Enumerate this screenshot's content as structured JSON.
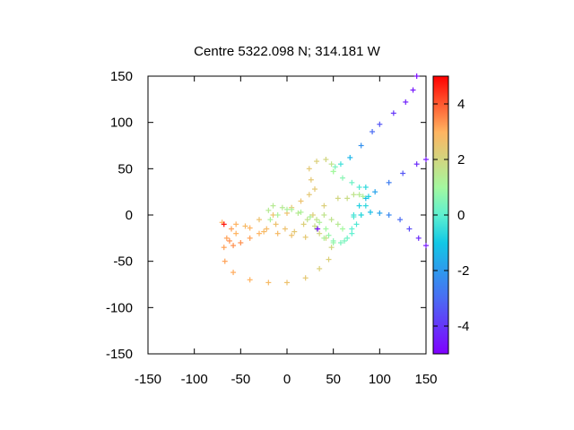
{
  "chart_data": {
    "type": "scatter",
    "title": "Centre 5322.098 N; 314.181  W",
    "xlabel": "",
    "ylabel": "",
    "xlim": [
      -150,
      150
    ],
    "ylim": [
      -150,
      150
    ],
    "x_ticks": [
      -150,
      -100,
      -50,
      0,
      50,
      100,
      150
    ],
    "x_tick_labels": [
      "-150",
      "-100",
      "-50",
      "0",
      "50",
      "100",
      "150"
    ],
    "y_ticks": [
      -150,
      -100,
      -50,
      0,
      50,
      100,
      150
    ],
    "y_tick_labels": [
      "-150",
      "-100",
      "-50",
      "0",
      "50",
      "100",
      "150"
    ],
    "grid": false,
    "colorbar": {
      "range": [
        -5,
        5
      ],
      "ticks": [
        -4,
        -2,
        0,
        2,
        4
      ],
      "tick_labels": [
        "-4",
        "-2",
        "0",
        "2",
        "4"
      ],
      "colormap": "rainbow"
    },
    "series": [
      {
        "points": [
          [
            140,
            150,
            -4.8
          ],
          [
            136,
            135,
            -4.6
          ],
          [
            128,
            122,
            -4.4
          ],
          [
            115,
            110,
            -4.0
          ],
          [
            100,
            98,
            -3.4
          ],
          [
            92,
            90,
            -3.0
          ],
          [
            80,
            75,
            -2.2
          ],
          [
            68,
            62,
            -1.4
          ],
          [
            58,
            55,
            -0.4
          ],
          [
            52,
            52,
            0.4
          ],
          [
            50,
            47,
            1.0
          ],
          [
            48,
            55,
            1.6
          ],
          [
            42,
            60,
            2.0
          ],
          [
            32,
            58,
            2.2
          ],
          [
            24,
            50,
            2.4
          ],
          [
            26,
            38,
            2.4
          ],
          [
            30,
            28,
            2.4
          ],
          [
            24,
            22,
            2.4
          ],
          [
            15,
            15,
            2.6
          ],
          [
            5,
            8,
            2.6
          ],
          [
            0,
            2,
            2.6
          ],
          [
            -15,
            0,
            2.6
          ],
          [
            -30,
            -5,
            2.6
          ],
          [
            -45,
            -12,
            2.8
          ],
          [
            -55,
            -20,
            3.0
          ],
          [
            -65,
            -25,
            3.2
          ],
          [
            -68,
            -35,
            3.2
          ],
          [
            -67,
            -50,
            3.2
          ],
          [
            -58,
            -62,
            3.1
          ],
          [
            -40,
            -70,
            3.0
          ],
          [
            -20,
            -73,
            2.8
          ],
          [
            0,
            -73,
            2.6
          ],
          [
            20,
            -68,
            2.4
          ],
          [
            35,
            -58,
            2.2
          ],
          [
            45,
            -48,
            2.2
          ],
          [
            48,
            -35,
            2.0
          ],
          [
            42,
            -25,
            2.0
          ],
          [
            35,
            -20,
            2.0
          ],
          [
            30,
            -12,
            1.8
          ],
          [
            22,
            -5,
            1.6
          ],
          [
            12,
            2,
            1.4
          ],
          [
            0,
            6,
            1.2
          ],
          [
            -10,
            0,
            1.2
          ],
          [
            -18,
            -5,
            1.2
          ],
          [
            -20,
            5,
            1.4
          ],
          [
            -15,
            10,
            1.4
          ],
          [
            -5,
            8,
            1.4
          ],
          [
            5,
            6,
            1.2
          ],
          [
            15,
            3,
            1.2
          ],
          [
            25,
            -2,
            1.2
          ],
          [
            35,
            -8,
            1.2
          ],
          [
            42,
            -15,
            1.0
          ],
          [
            45,
            -22,
            0.8
          ],
          [
            50,
            -28,
            0.6
          ],
          [
            58,
            -30,
            0.4
          ],
          [
            65,
            -25,
            0.2
          ],
          [
            70,
            -15,
            0.0
          ],
          [
            72,
            0,
            -0.4
          ],
          [
            78,
            10,
            -0.8
          ],
          [
            85,
            18,
            -1.2
          ],
          [
            95,
            25,
            -1.8
          ],
          [
            110,
            35,
            -2.6
          ],
          [
            125,
            45,
            -3.4
          ],
          [
            140,
            55,
            -4.2
          ],
          [
            150,
            60,
            -4.6
          ],
          [
            50,
            47,
            1.0
          ],
          [
            60,
            40,
            0.6
          ],
          [
            70,
            35,
            0.2
          ],
          [
            78,
            30,
            -0.2
          ],
          [
            85,
            30,
            -0.6
          ],
          [
            88,
            20,
            -0.8
          ],
          [
            85,
            10,
            -0.6
          ],
          [
            80,
            0,
            -0.4
          ],
          [
            75,
            -10,
            -0.2
          ],
          [
            70,
            -20,
            0.0
          ],
          [
            62,
            -28,
            0.4
          ],
          [
            50,
            -30,
            0.8
          ],
          [
            40,
            -25,
            1.2
          ],
          [
            32,
            -15,
            1.4
          ],
          [
            32,
            -5,
            1.6
          ],
          [
            40,
            0,
            1.6
          ],
          [
            48,
            -5,
            1.6
          ],
          [
            55,
            -10,
            1.4
          ],
          [
            60,
            -15,
            1.0
          ],
          [
            72,
            -2,
            -0.2
          ],
          [
            80,
            0,
            -0.6
          ],
          [
            90,
            3,
            -1.2
          ],
          [
            100,
            2,
            -1.8
          ],
          [
            110,
            0,
            -2.4
          ],
          [
            122,
            -5,
            -3.0
          ],
          [
            132,
            -15,
            -3.6
          ],
          [
            142,
            -25,
            -4.2
          ],
          [
            150,
            -33,
            -4.6
          ],
          [
            -60,
            -15,
            3.2
          ],
          [
            -62,
            -28,
            3.4
          ],
          [
            -58,
            -33,
            3.4
          ],
          [
            -50,
            -30,
            3.4
          ],
          [
            -40,
            -25,
            3.2
          ],
          [
            -30,
            -20,
            3.0
          ],
          [
            -22,
            -15,
            2.8
          ],
          [
            -12,
            -10,
            2.6
          ],
          [
            -2,
            -15,
            2.6
          ],
          [
            8,
            -18,
            2.4
          ],
          [
            18,
            -10,
            2.2
          ],
          [
            28,
            0,
            2.2
          ],
          [
            40,
            10,
            2.2
          ],
          [
            55,
            18,
            2.0
          ],
          [
            65,
            18,
            1.8
          ],
          [
            72,
            22,
            1.6
          ],
          [
            78,
            22,
            1.4
          ],
          [
            82,
            20,
            1.2
          ],
          [
            -70,
            -8,
            3.0
          ],
          [
            -55,
            -10,
            3.0
          ],
          [
            -40,
            -14,
            3.0
          ],
          [
            -25,
            -18,
            2.8
          ],
          [
            -10,
            -20,
            2.8
          ],
          [
            5,
            -22,
            2.6
          ],
          [
            20,
            -24,
            2.4
          ],
          [
            -68,
            -10,
            4.8
          ],
          [
            33,
            -15,
            -4.8
          ]
        ]
      }
    ]
  }
}
